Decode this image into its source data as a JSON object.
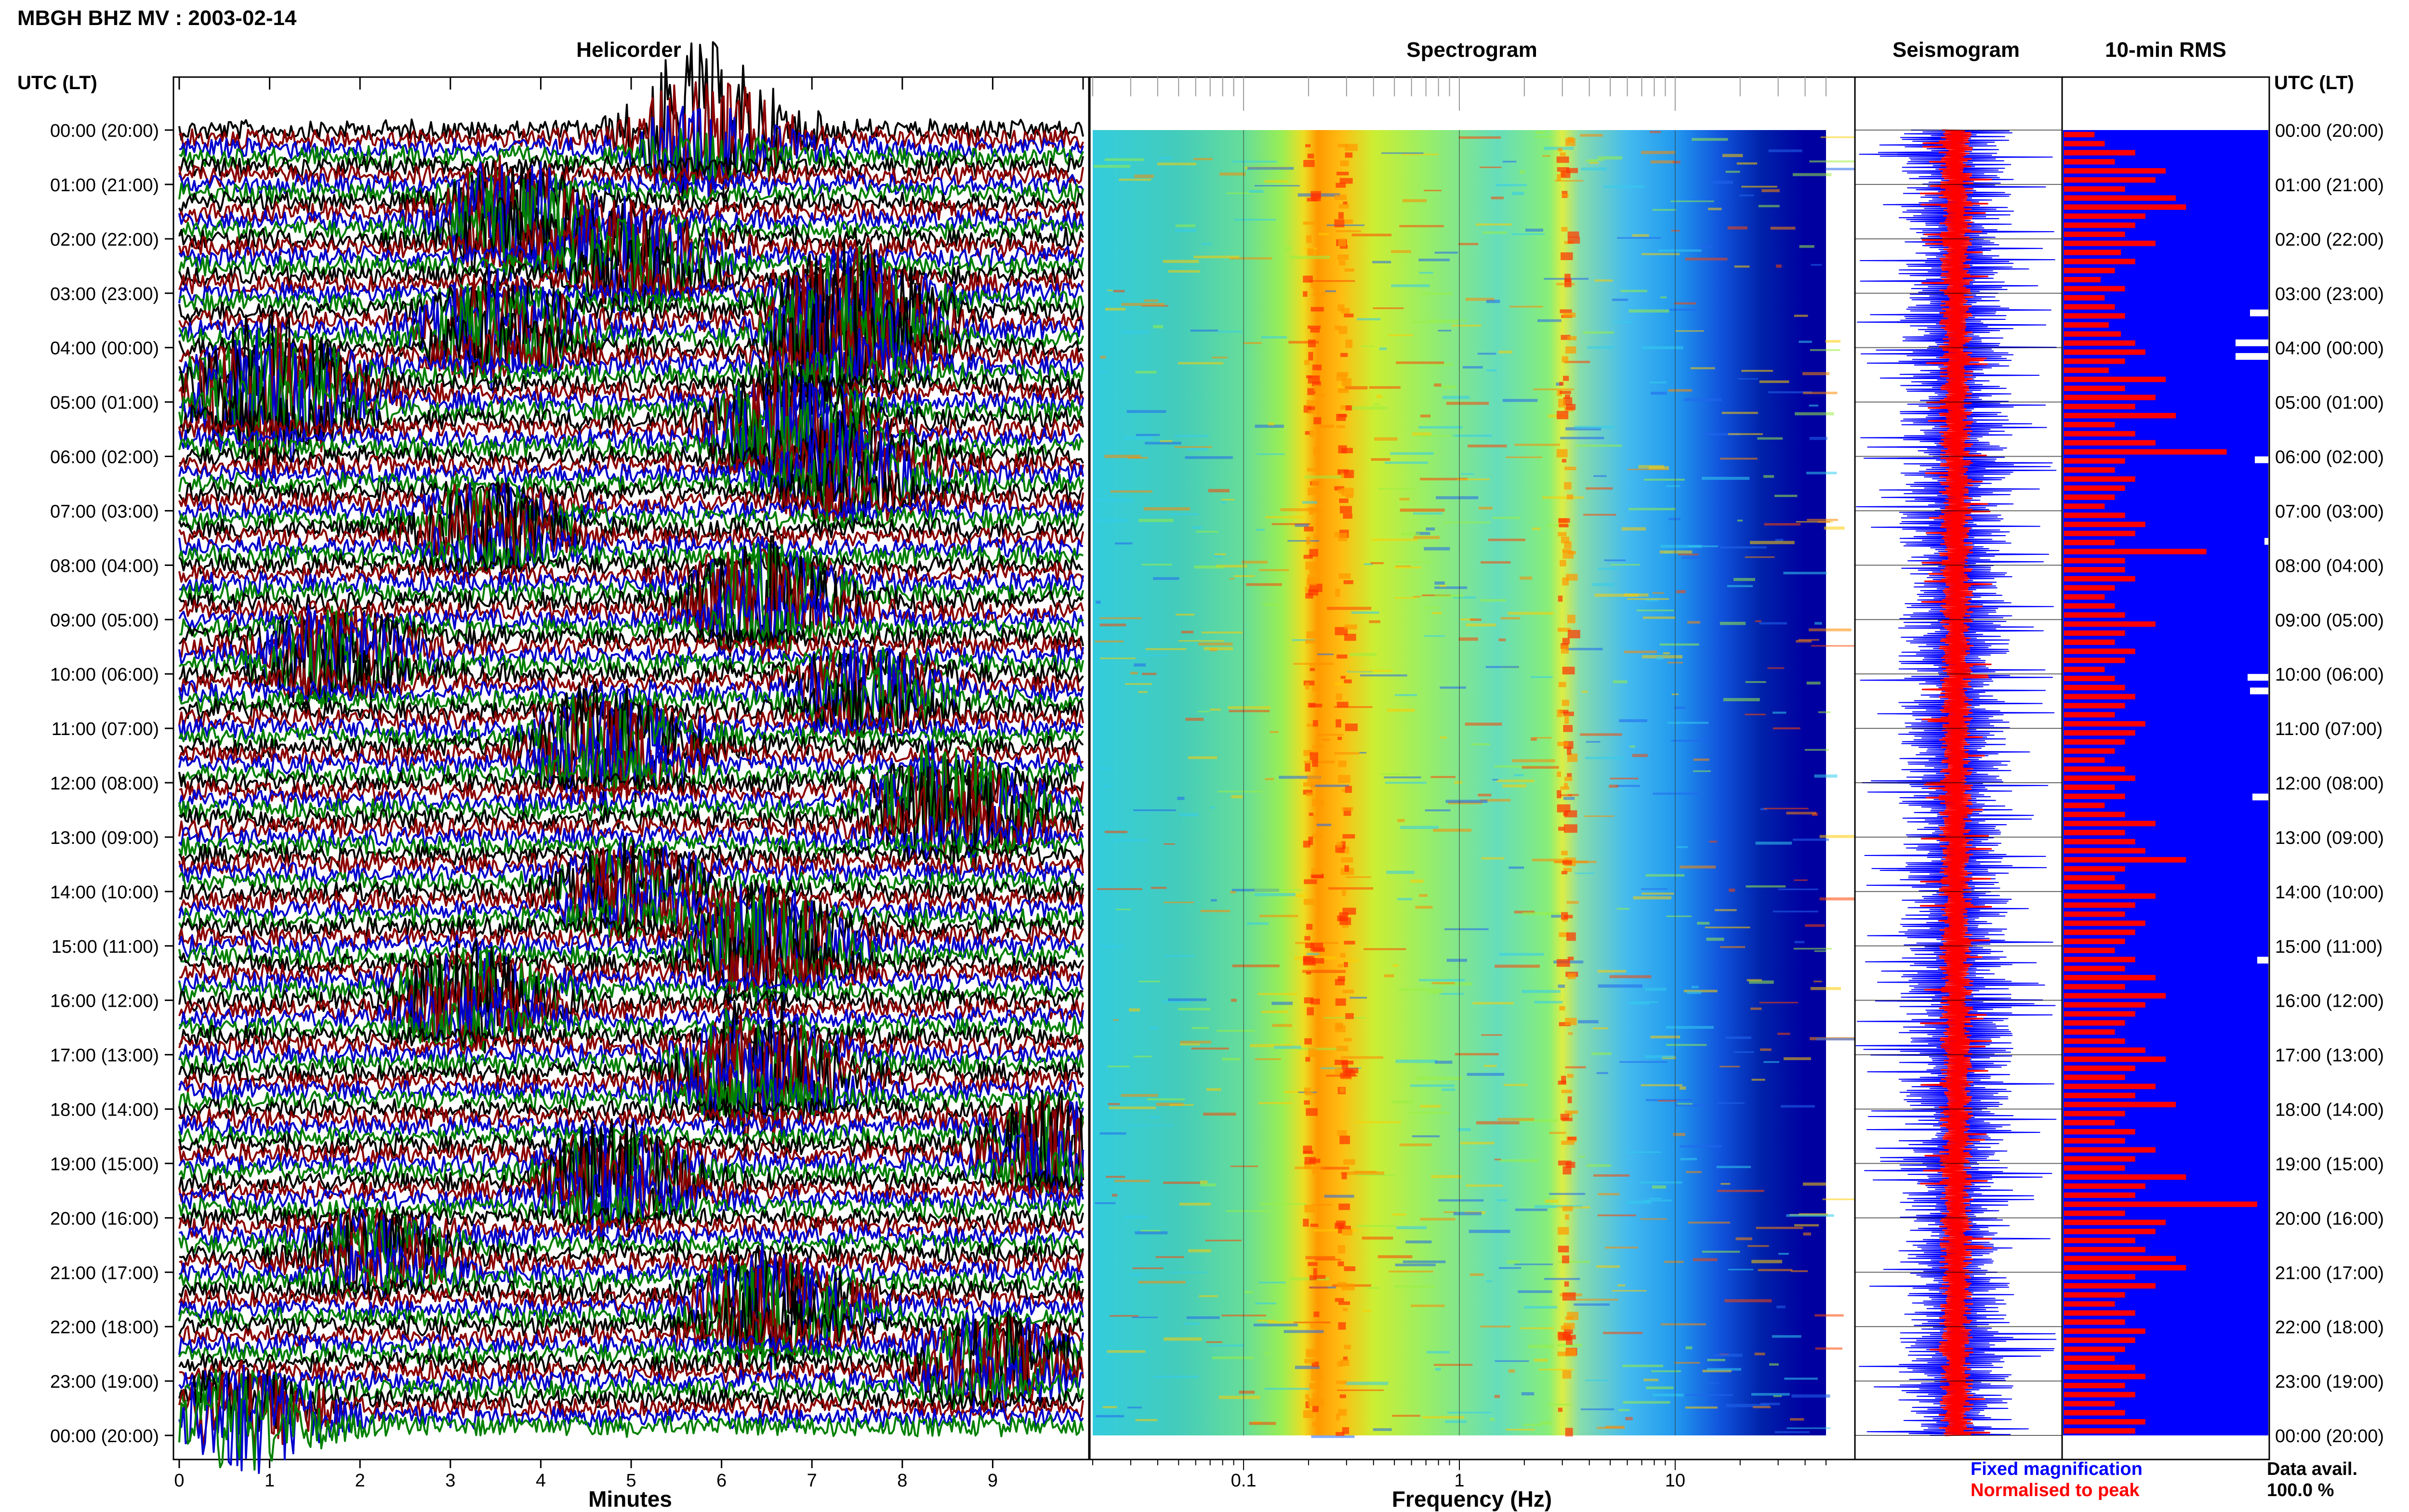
{
  "header": {
    "title": "MBGH BHZ MV : 2003-02-14"
  },
  "panels": {
    "helicorder": "Helicorder",
    "spectrogram": "Spectrogram",
    "seismogram": "Seismogram",
    "rms": "10-min RMS"
  },
  "axis": {
    "time_label_left": "UTC (LT)",
    "time_label_right": "UTC (LT)",
    "minutes_label": "Minutes",
    "frequency_label": "Frequency (Hz)"
  },
  "legend": {
    "fixed": "Fixed magnification",
    "normalised": "Normalised to peak",
    "fixed_color": "#0000ff",
    "normalised_color": "#ff0000"
  },
  "data_avail": {
    "label": "Data avail.",
    "value": "100.0 %"
  },
  "colors": {
    "trace_black": "#000000",
    "trace_red": "#8b0000",
    "trace_blue": "#0000cd",
    "trace_green": "#008000",
    "rms_fill": "#0000ff",
    "rms_bar": "#ff0000",
    "spec_background": "#0000a0"
  },
  "chart_data": [
    {
      "type": "line",
      "title": "Helicorder",
      "xlabel": "Minutes",
      "x_ticks": [
        "0",
        "1",
        "2",
        "3",
        "4",
        "5",
        "6",
        "7",
        "8",
        "9"
      ],
      "xlim": [
        0,
        10
      ],
      "y_ticks": [
        "00:00 (20:00)",
        "01:00 (21:00)",
        "02:00 (22:00)",
        "03:00 (23:00)",
        "04:00 (00:00)",
        "05:00 (01:00)",
        "06:00 (02:00)",
        "07:00 (03:00)",
        "08:00 (04:00)",
        "09:00 (05:00)",
        "10:00 (06:00)",
        "11:00 (07:00)",
        "12:00 (08:00)",
        "13:00 (09:00)",
        "14:00 (10:00)",
        "15:00 (11:00)",
        "16:00 (12:00)",
        "17:00 (13:00)",
        "18:00 (14:00)",
        "19:00 (15:00)",
        "20:00 (16:00)",
        "21:00 (17:00)",
        "22:00 (18:00)",
        "23:00 (19:00)",
        "00:00 (20:00)"
      ],
      "trace_rows": 144,
      "event_bursts": [
        {
          "row": 0,
          "minute": 5.7,
          "amp": 3.2
        },
        {
          "row": 10,
          "minute": 3.6,
          "amp": 2.4
        },
        {
          "row": 14,
          "minute": 4.9,
          "amp": 2.0
        },
        {
          "row": 20,
          "minute": 7.3,
          "amp": 2.6
        },
        {
          "row": 22,
          "minute": 3.4,
          "amp": 2.2
        },
        {
          "row": 24,
          "minute": 7.2,
          "amp": 2.4
        },
        {
          "row": 29,
          "minute": 0.9,
          "amp": 3.4
        },
        {
          "row": 33,
          "minute": 6.6,
          "amp": 2.8
        },
        {
          "row": 38,
          "minute": 7.3,
          "amp": 1.8
        },
        {
          "row": 44,
          "minute": 3.3,
          "amp": 1.6
        },
        {
          "row": 52,
          "minute": 6.3,
          "amp": 2.4
        },
        {
          "row": 58,
          "minute": 1.6,
          "amp": 1.8
        },
        {
          "row": 62,
          "minute": 7.5,
          "amp": 1.6
        },
        {
          "row": 68,
          "minute": 4.6,
          "amp": 2.4
        },
        {
          "row": 75,
          "minute": 8.4,
          "amp": 2.6
        },
        {
          "row": 84,
          "minute": 4.9,
          "amp": 1.8
        },
        {
          "row": 90,
          "minute": 6.4,
          "amp": 2.6
        },
        {
          "row": 96,
          "minute": 3.1,
          "amp": 2.0
        },
        {
          "row": 104,
          "minute": 6.3,
          "amp": 3.0
        },
        {
          "row": 112,
          "minute": 9.6,
          "amp": 2.0
        },
        {
          "row": 116,
          "minute": 4.7,
          "amp": 2.2
        },
        {
          "row": 124,
          "minute": 2.1,
          "amp": 1.4
        },
        {
          "row": 130,
          "minute": 6.4,
          "amp": 2.4
        },
        {
          "row": 136,
          "minute": 8.9,
          "amp": 1.8
        },
        {
          "row": 142,
          "minute": 0.6,
          "amp": 2.0
        }
      ]
    },
    {
      "type": "heatmap",
      "title": "Spectrogram",
      "xlabel": "Frequency (Hz)",
      "x_scale": "log",
      "x_ticks": [
        "0.1",
        "1",
        "10"
      ],
      "xlim": [
        0.02,
        50
      ],
      "spectral_peaks_hz": [
        0.2,
        0.28,
        3.0
      ]
    },
    {
      "type": "line",
      "title": "Seismogram",
      "series": [
        {
          "name": "Fixed magnification"
        },
        {
          "name": "Normalised to peak"
        }
      ]
    },
    {
      "type": "bar",
      "title": "10-min RMS",
      "orientation": "horizontal",
      "values": [
        0.15,
        0.2,
        0.35,
        0.25,
        0.5,
        0.45,
        0.3,
        0.55,
        0.6,
        0.4,
        0.35,
        0.3,
        0.45,
        0.28,
        0.35,
        0.25,
        0.18,
        0.3,
        0.2,
        0.25,
        0.3,
        0.22,
        0.28,
        0.35,
        0.4,
        0.3,
        0.22,
        0.5,
        0.3,
        0.45,
        0.35,
        0.55,
        0.25,
        0.35,
        0.45,
        0.8,
        0.3,
        0.25,
        0.35,
        0.3,
        0.25,
        0.2,
        0.3,
        0.4,
        0.35,
        0.25,
        0.7,
        0.3,
        0.3,
        0.35,
        0.25,
        0.2,
        0.25,
        0.3,
        0.45,
        0.3,
        0.25,
        0.35,
        0.3,
        0.2,
        0.25,
        0.3,
        0.35,
        0.3,
        0.25,
        0.4,
        0.35,
        0.3,
        0.25,
        0.2,
        0.3,
        0.35,
        0.25,
        0.3,
        0.2,
        0.3,
        0.45,
        0.3,
        0.35,
        0.4,
        0.6,
        0.3,
        0.25,
        0.3,
        0.45,
        0.35,
        0.3,
        0.4,
        0.35,
        0.3,
        0.25,
        0.35,
        0.3,
        0.45,
        0.3,
        0.5,
        0.4,
        0.35,
        0.3,
        0.25,
        0.3,
        0.4,
        0.5,
        0.35,
        0.3,
        0.45,
        0.35,
        0.55,
        0.3,
        0.25,
        0.35,
        0.3,
        0.45,
        0.35,
        0.3,
        0.6,
        0.4,
        0.35,
        0.95,
        0.3,
        0.5,
        0.45,
        0.35,
        0.4,
        0.55,
        0.6,
        0.35,
        0.45,
        0.3,
        0.25,
        0.35,
        0.3,
        0.4,
        0.35,
        0.3,
        0.25,
        0.35,
        0.4,
        0.3,
        0.35,
        0.25,
        0.3,
        0.4,
        0.35
      ]
    }
  ]
}
